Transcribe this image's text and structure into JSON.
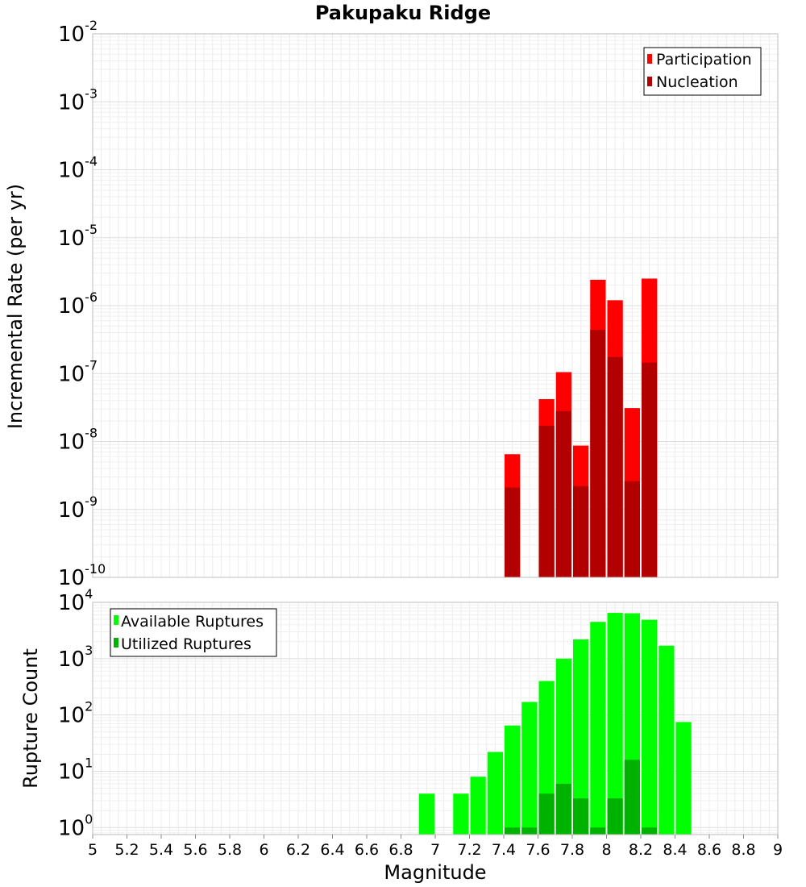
{
  "chart_data": [
    {
      "type": "bar",
      "title": "Pakupaku Ridge",
      "ylabel": "Incremental Rate (per yr)",
      "xlabel": "",
      "xlim": [
        5,
        9
      ],
      "ylim": [
        1e-10,
        0.01
      ],
      "yscale": "log",
      "grid": true,
      "legend_position": "top-right",
      "y_ticks": [
        {
          "base": "10",
          "exp": "-2"
        },
        {
          "base": "10",
          "exp": "-3"
        },
        {
          "base": "10",
          "exp": "-4"
        },
        {
          "base": "10",
          "exp": "-5"
        },
        {
          "base": "10",
          "exp": "-6"
        },
        {
          "base": "10",
          "exp": "-7"
        },
        {
          "base": "10",
          "exp": "-8"
        },
        {
          "base": "10",
          "exp": "-9"
        },
        {
          "base": "10",
          "exp": "-10"
        }
      ],
      "series": [
        {
          "name": "Participation",
          "color": "#ff0000",
          "x": [
            7.45,
            7.65,
            7.75,
            7.85,
            7.95,
            8.05,
            8.15,
            8.25
          ],
          "values": [
            6.5e-09,
            4.2e-08,
            1.05e-07,
            8.7e-09,
            2.4e-06,
            1.2e-06,
            3.1e-08,
            2.5e-06
          ]
        },
        {
          "name": "Nucleation",
          "color": "#b20000",
          "x": [
            7.45,
            7.65,
            7.75,
            7.85,
            7.95,
            8.05,
            8.15,
            8.25
          ],
          "values": [
            2.1e-09,
            1.7e-08,
            2.8e-08,
            2.2e-09,
            4.4e-07,
            1.75e-07,
            2.6e-09,
            1.45e-07
          ]
        }
      ]
    },
    {
      "type": "bar",
      "title": "",
      "ylabel": "Rupture Count",
      "xlabel": "Magnitude",
      "xlim": [
        5,
        9
      ],
      "ylim": [
        0.75,
        10000
      ],
      "yscale": "log",
      "grid": true,
      "legend_position": "top-left",
      "x_ticks": [
        "5",
        "5.2",
        "5.4",
        "5.6",
        "5.8",
        "6",
        "6.2",
        "6.4",
        "6.6",
        "6.8",
        "7",
        "7.2",
        "7.4",
        "7.6",
        "7.8",
        "8",
        "8.2",
        "8.4",
        "8.6",
        "8.8",
        "9"
      ],
      "y_ticks": [
        {
          "base": "10",
          "exp": "4"
        },
        {
          "base": "10",
          "exp": "3"
        },
        {
          "base": "10",
          "exp": "2"
        },
        {
          "base": "10",
          "exp": "1"
        },
        {
          "base": "10",
          "exp": "0"
        }
      ],
      "series": [
        {
          "name": "Available Ruptures",
          "color": "#00ff00",
          "x": [
            6.95,
            7.15,
            7.25,
            7.35,
            7.45,
            7.55,
            7.65,
            7.75,
            7.85,
            7.95,
            8.05,
            8.15,
            8.25,
            8.35,
            8.45
          ],
          "values": [
            4,
            4,
            8,
            22,
            65,
            170,
            400,
            1000,
            2200,
            4500,
            6500,
            6400,
            4900,
            1700,
            75
          ]
        },
        {
          "name": "Utilized Ruptures",
          "color": "#00b200",
          "x": [
            7.45,
            7.55,
            7.65,
            7.75,
            7.85,
            7.95,
            8.05,
            8.15,
            8.25
          ],
          "values": [
            1,
            1,
            4,
            6,
            3.3,
            1,
            3.3,
            16,
            1
          ]
        }
      ]
    }
  ]
}
